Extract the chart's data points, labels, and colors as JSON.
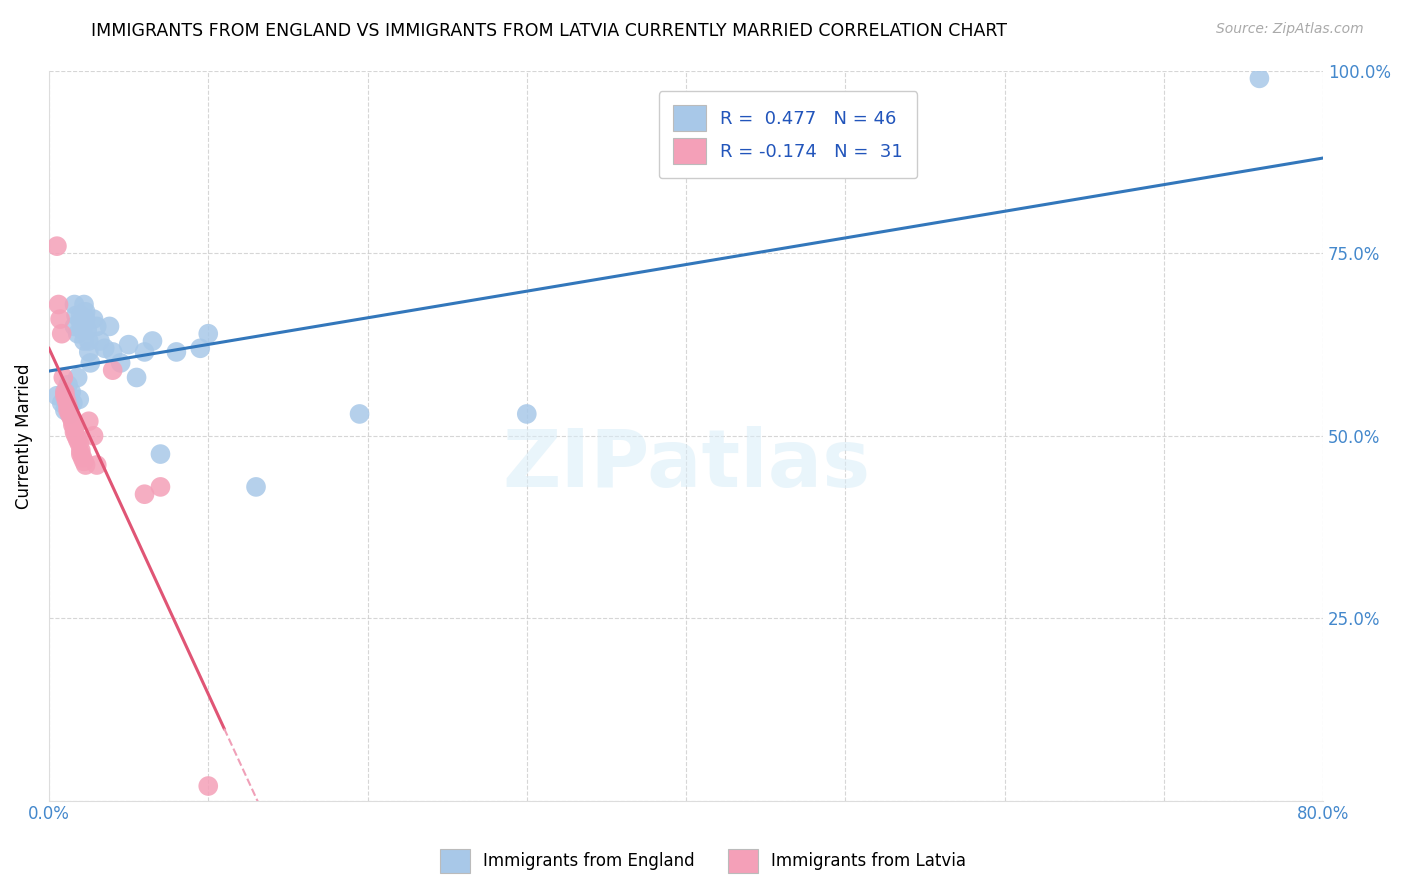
{
  "title": "IMMIGRANTS FROM ENGLAND VS IMMIGRANTS FROM LATVIA CURRENTLY MARRIED CORRELATION CHART",
  "source": "Source: ZipAtlas.com",
  "ylabel_label": "Currently Married",
  "xlim": [
    0.0,
    0.8
  ],
  "ylim": [
    0.0,
    1.0
  ],
  "england_R": 0.477,
  "england_N": 46,
  "latvia_R": -0.174,
  "latvia_N": 31,
  "england_color": "#a8c8e8",
  "latvia_color": "#f4a0b8",
  "england_line_color": "#3377bb",
  "latvia_line_color": "#e05575",
  "latvia_dash_color": "#f0a0b8",
  "tick_color": "#4488cc",
  "watermark_text": "ZIPatlas",
  "england_x": [
    0.005,
    0.008,
    0.01,
    0.01,
    0.012,
    0.012,
    0.013,
    0.013,
    0.014,
    0.015,
    0.016,
    0.016,
    0.017,
    0.018,
    0.018,
    0.019,
    0.02,
    0.02,
    0.021,
    0.022,
    0.022,
    0.023,
    0.023,
    0.024,
    0.025,
    0.025,
    0.026,
    0.028,
    0.03,
    0.032,
    0.035,
    0.038,
    0.04,
    0.045,
    0.05,
    0.055,
    0.06,
    0.065,
    0.07,
    0.08,
    0.095,
    0.1,
    0.13,
    0.195,
    0.3,
    0.76
  ],
  "england_y": [
    0.555,
    0.545,
    0.56,
    0.535,
    0.57,
    0.55,
    0.545,
    0.53,
    0.56,
    0.545,
    0.68,
    0.65,
    0.665,
    0.64,
    0.58,
    0.55,
    0.665,
    0.655,
    0.645,
    0.63,
    0.68,
    0.67,
    0.66,
    0.645,
    0.63,
    0.615,
    0.6,
    0.66,
    0.65,
    0.63,
    0.62,
    0.65,
    0.615,
    0.6,
    0.625,
    0.58,
    0.615,
    0.63,
    0.475,
    0.615,
    0.62,
    0.64,
    0.43,
    0.53,
    0.53,
    0.99
  ],
  "latvia_x": [
    0.005,
    0.006,
    0.007,
    0.008,
    0.009,
    0.01,
    0.01,
    0.011,
    0.012,
    0.012,
    0.013,
    0.014,
    0.015,
    0.015,
    0.016,
    0.016,
    0.017,
    0.018,
    0.019,
    0.02,
    0.02,
    0.021,
    0.022,
    0.023,
    0.025,
    0.028,
    0.03,
    0.04,
    0.06,
    0.07,
    0.1
  ],
  "latvia_y": [
    0.76,
    0.68,
    0.66,
    0.64,
    0.58,
    0.56,
    0.555,
    0.548,
    0.54,
    0.535,
    0.53,
    0.525,
    0.52,
    0.515,
    0.51,
    0.505,
    0.5,
    0.495,
    0.49,
    0.48,
    0.475,
    0.47,
    0.465,
    0.46,
    0.52,
    0.5,
    0.46,
    0.59,
    0.42,
    0.43,
    0.02
  ]
}
